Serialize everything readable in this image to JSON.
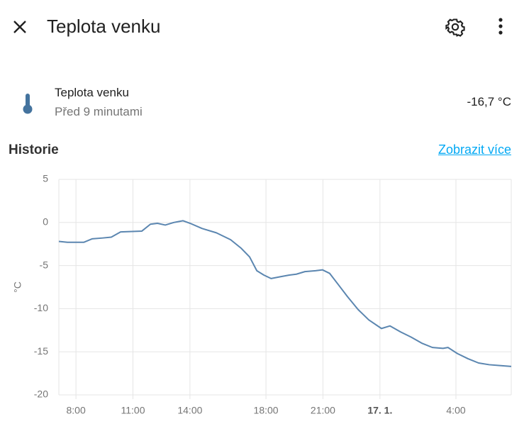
{
  "header": {
    "title": "Teplota venku"
  },
  "entity": {
    "name": "Teplota venku",
    "updated": "Před 9 minutami",
    "state": "-16,7 °C"
  },
  "history": {
    "title": "Historie",
    "link": "Zobrazit více"
  },
  "chart_data": {
    "type": "line",
    "y_label": "°C",
    "x": [
      7.1,
      7.55,
      8.41,
      8.85,
      9.41,
      9.86,
      10.35,
      11.47,
      11.92,
      12.29,
      12.7,
      13.15,
      13.63,
      14.01,
      14.64,
      15.39,
      16.14,
      16.7,
      17.14,
      17.52,
      17.89,
      18.27,
      18.75,
      19.23,
      19.6,
      20.05,
      20.61,
      20.98,
      21.35,
      21.84,
      22.29,
      22.85,
      23.41,
      24.08,
      24.53,
      25.09,
      25.64,
      26.2,
      26.76,
      27.32,
      27.58,
      28.07,
      28.63,
      29.19,
      29.75,
      30.31,
      30.91
    ],
    "series": [
      {
        "color": "#5b86b0",
        "values": [
          -2.2,
          -2.3,
          -2.3,
          -1.9,
          -1.8,
          -1.7,
          -1.1,
          -1.0,
          -0.2,
          -0.1,
          -0.3,
          0.0,
          0.2,
          -0.1,
          -0.7,
          -1.2,
          -2.0,
          -3.0,
          -4.0,
          -5.6,
          -6.1,
          -6.5,
          -6.3,
          -6.1,
          -6.0,
          -5.7,
          -5.6,
          -5.5,
          -5.9,
          -7.3,
          -8.6,
          -10.1,
          -11.3,
          -12.3,
          -12.0,
          -12.7,
          -13.3,
          -14.0,
          -14.5,
          -14.6,
          -14.5,
          -15.2,
          -15.8,
          -16.3,
          -16.5,
          -16.6,
          -16.7
        ]
      }
    ],
    "xlim": [
      7.1,
      30.91
    ],
    "xticks": [
      {
        "value": 8,
        "label": "8:00"
      },
      {
        "value": 11,
        "label": "11:00"
      },
      {
        "value": 14,
        "label": "14:00"
      },
      {
        "value": 18,
        "label": "18:00"
      },
      {
        "value": 21,
        "label": "21:00"
      },
      {
        "value": 24,
        "label": "17. 1."
      },
      {
        "value": 28,
        "label": "4:00"
      }
    ],
    "ylim": [
      -20,
      5
    ],
    "yticks": [
      -20,
      -15,
      -10,
      -5,
      0,
      5
    ],
    "grid": true
  }
}
